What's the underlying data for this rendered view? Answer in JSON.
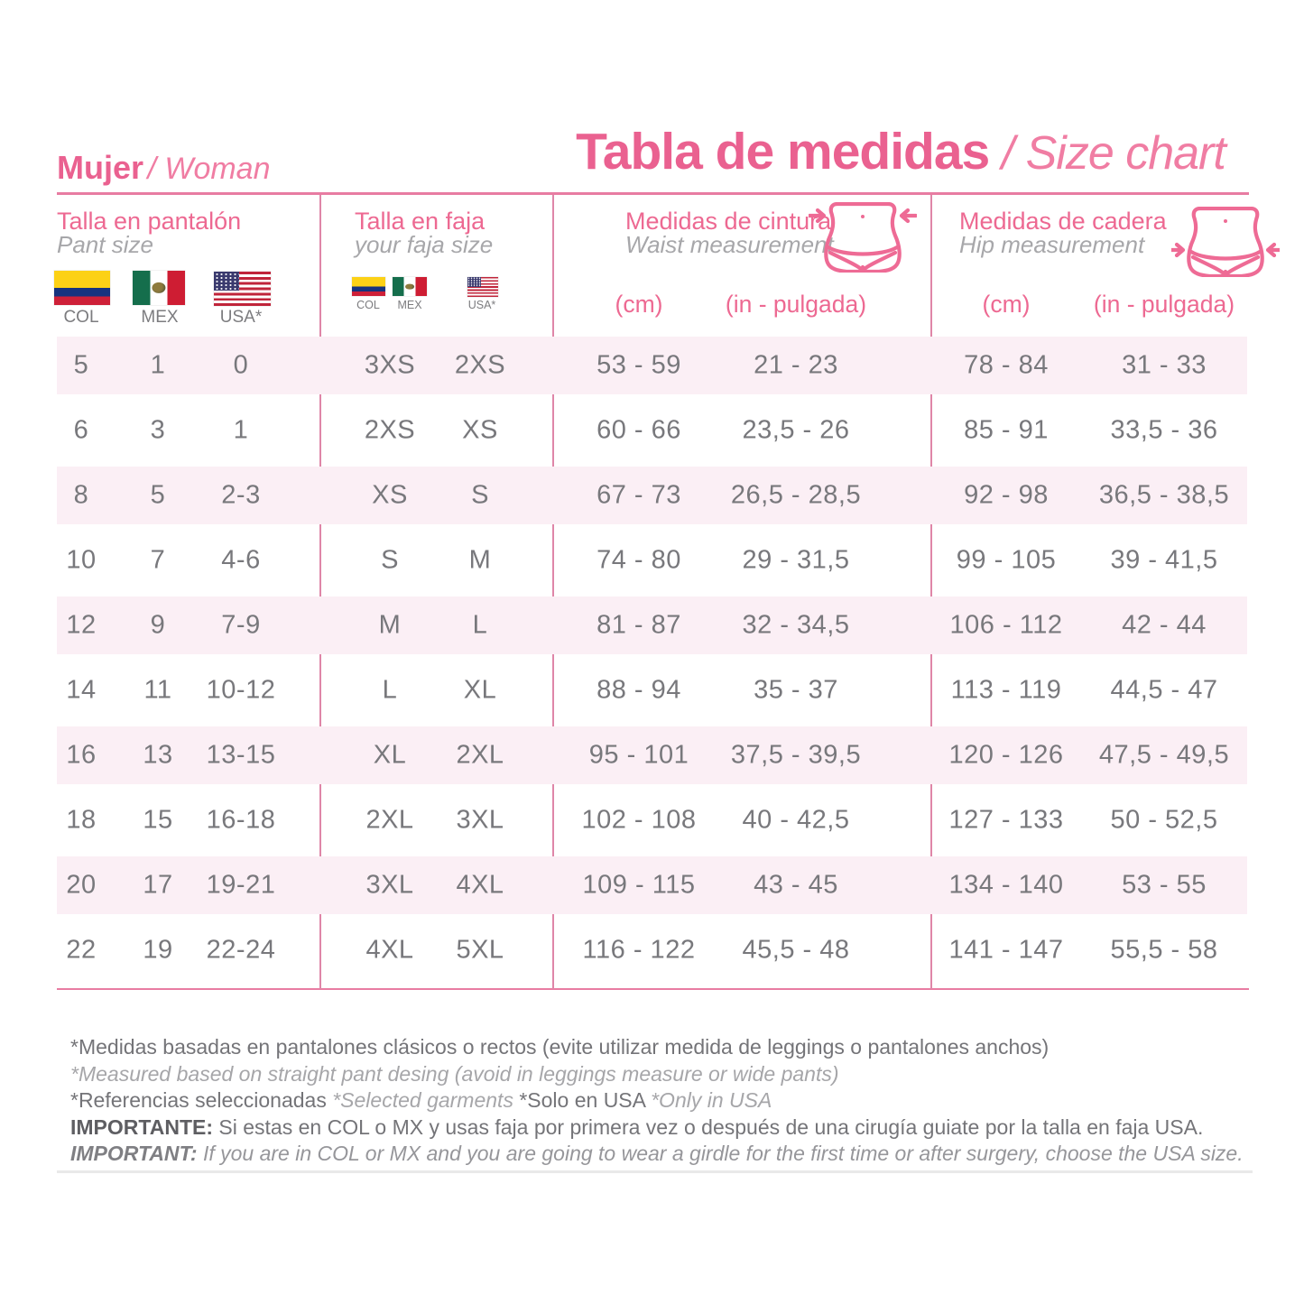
{
  "header": {
    "left_title": {
      "bold": "Mujer",
      "italic": "/ Woman"
    },
    "main_title": {
      "bold": "Tabla de medidas",
      "italic": " / Size chart"
    }
  },
  "groups": [
    {
      "title": "Talla en pantalón",
      "subtitle": "Pant size",
      "flag_labels": [
        "COL",
        "MEX",
        "USA*"
      ]
    },
    {
      "title": "Talla en faja",
      "subtitle": "your faja size",
      "flag_labels": [
        "COL",
        "MEX",
        "USA*"
      ]
    },
    {
      "title": "Medidas de cintura",
      "subtitle": "Waist measurement",
      "units": [
        "(cm)",
        "(in - pulgada)"
      ]
    },
    {
      "title": "Medidas de cadera",
      "subtitle": "Hip measurement",
      "units": [
        "(cm)",
        "(in - pulgada)"
      ]
    }
  ],
  "table": {
    "columns": [
      "pant_col",
      "pant_mex",
      "pant_usa",
      "faja_col_mex",
      "faja_usa",
      "waist_cm",
      "waist_in_pulgada",
      "hip_cm",
      "hip_in_pulgada"
    ],
    "rows": [
      [
        "5",
        "1",
        "0",
        "3XS",
        "2XS",
        "53 - 59",
        "21 - 23",
        "78 - 84",
        "31 - 33"
      ],
      [
        "6",
        "3",
        "1",
        "2XS",
        "XS",
        "60 - 66",
        "23,5 - 26",
        "85 - 91",
        "33,5 - 36"
      ],
      [
        "8",
        "5",
        "2-3",
        "XS",
        "S",
        "67 - 73",
        "26,5 - 28,5",
        "92 - 98",
        "36,5 - 38,5"
      ],
      [
        "10",
        "7",
        "4-6",
        "S",
        "M",
        "74 - 80",
        "29 - 31,5",
        "99 - 105",
        "39 - 41,5"
      ],
      [
        "12",
        "9",
        "7-9",
        "M",
        "L",
        "81 - 87",
        "32 - 34,5",
        "106 - 112",
        "42 - 44"
      ],
      [
        "14",
        "11",
        "10-12",
        "L",
        "XL",
        "88 - 94",
        "35 - 37",
        "113 - 119",
        "44,5 - 47"
      ],
      [
        "16",
        "13",
        "13-15",
        "XL",
        "2XL",
        "95 - 101",
        "37,5 - 39,5",
        "120 - 126",
        "47,5 - 49,5"
      ],
      [
        "18",
        "15",
        "16-18",
        "2XL",
        "3XL",
        "102 - 108",
        "40 - 42,5",
        "127 - 133",
        "50 - 52,5"
      ],
      [
        "20",
        "17",
        "19-21",
        "3XL",
        "4XL",
        "109 - 115",
        "43 - 45",
        "134 - 140",
        "53 - 55"
      ],
      [
        "22",
        "19",
        "22-24",
        "4XL",
        "5XL",
        "116 - 122",
        "45,5 - 48",
        "141 - 147",
        "55,5 - 58"
      ]
    ]
  },
  "footnotes": {
    "lines": [
      [
        {
          "style": "regular",
          "text": "*Medidas basadas en pantalones clásicos o rectos (evite utilizar medida de leggings o pantalones anchos)"
        }
      ],
      [
        {
          "style": "italic",
          "text": "*Measured based on straight pant desing (avoid in leggings measure or wide pants)"
        }
      ],
      [
        {
          "style": "regular",
          "text": "*Referencias seleccionadas "
        },
        {
          "style": "italic",
          "text": "*Selected garments "
        },
        {
          "style": "regular",
          "text": "*Solo en USA "
        },
        {
          "style": "italic",
          "text": "*Only in USA"
        }
      ],
      [
        {
          "style": "bold",
          "text": "IMPORTANTE: "
        },
        {
          "style": "regular",
          "text": "Si estas en COL o MX y usas faja por primera vez o después de una cirugía guiate por la talla en faja USA."
        }
      ],
      [
        {
          "style": "bold-italic",
          "text": "IMPORTANT: "
        },
        {
          "style": "italic2",
          "text": "If you are in COL or MX and you are going to wear a girdle for the first time or after surgery, choose the USA size."
        }
      ]
    ]
  },
  "colors": {
    "accent_pink": "#ea6190",
    "light_pink_row": "#fbeff5",
    "line_pink": "#e87ca2",
    "text_gray": "#78787c"
  }
}
